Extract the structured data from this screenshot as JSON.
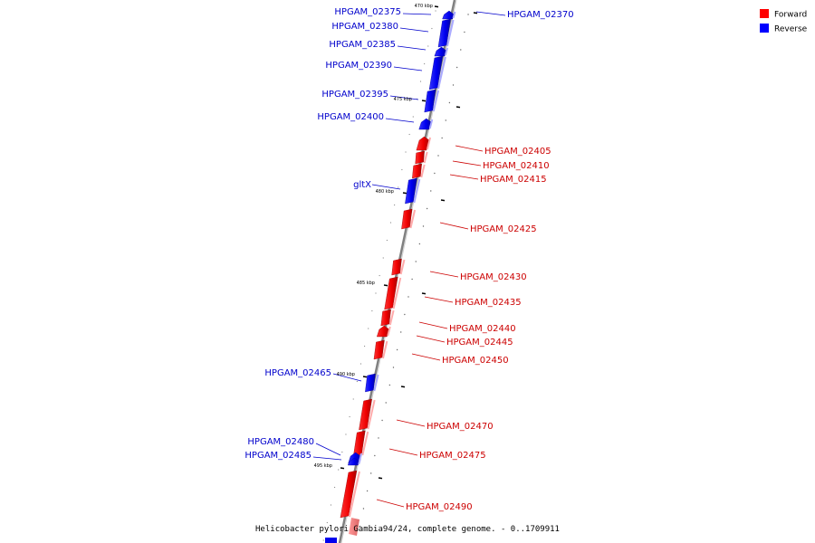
{
  "caption": "Helicobacter pylori Gambia94/24, complete genome. - 0..1709911",
  "legend": [
    {
      "label": "Forward",
      "color": "#ff0000"
    },
    {
      "label": "Reverse",
      "color": "#0000ff"
    }
  ],
  "colors": {
    "forward": "#ff0000",
    "reverse": "#0000ff",
    "forward_label": "#cc0000",
    "reverse_label": "#0000cc",
    "backbone": "#808080"
  },
  "tick_labels": [
    "470 kbp",
    "475 kbp",
    "480 kbp",
    "485 kbp",
    "490 kbp",
    "495 kbp"
  ],
  "genes": [
    {
      "name": "HPGAM_02370",
      "strand": "reverse"
    },
    {
      "name": "HPGAM_02375",
      "strand": "reverse"
    },
    {
      "name": "HPGAM_02380",
      "strand": "reverse"
    },
    {
      "name": "HPGAM_02385",
      "strand": "reverse"
    },
    {
      "name": "HPGAM_02390",
      "strand": "reverse"
    },
    {
      "name": "HPGAM_02395",
      "strand": "reverse"
    },
    {
      "name": "HPGAM_02400",
      "strand": "reverse"
    },
    {
      "name": "HPGAM_02405",
      "strand": "forward"
    },
    {
      "name": "HPGAM_02410",
      "strand": "forward"
    },
    {
      "name": "HPGAM_02415",
      "strand": "forward"
    },
    {
      "name": "gltX",
      "strand": "reverse"
    },
    {
      "name": "HPGAM_02425",
      "strand": "forward"
    },
    {
      "name": "HPGAM_02430",
      "strand": "forward"
    },
    {
      "name": "HPGAM_02435",
      "strand": "forward"
    },
    {
      "name": "HPGAM_02440",
      "strand": "forward"
    },
    {
      "name": "HPGAM_02445",
      "strand": "forward"
    },
    {
      "name": "HPGAM_02450",
      "strand": "forward"
    },
    {
      "name": "HPGAM_02465",
      "strand": "reverse"
    },
    {
      "name": "HPGAM_02470",
      "strand": "forward"
    },
    {
      "name": "HPGAM_02475",
      "strand": "forward"
    },
    {
      "name": "HPGAM_02480",
      "strand": "reverse"
    },
    {
      "name": "HPGAM_02485",
      "strand": "reverse"
    },
    {
      "name": "HPGAM_02490",
      "strand": "forward"
    }
  ]
}
